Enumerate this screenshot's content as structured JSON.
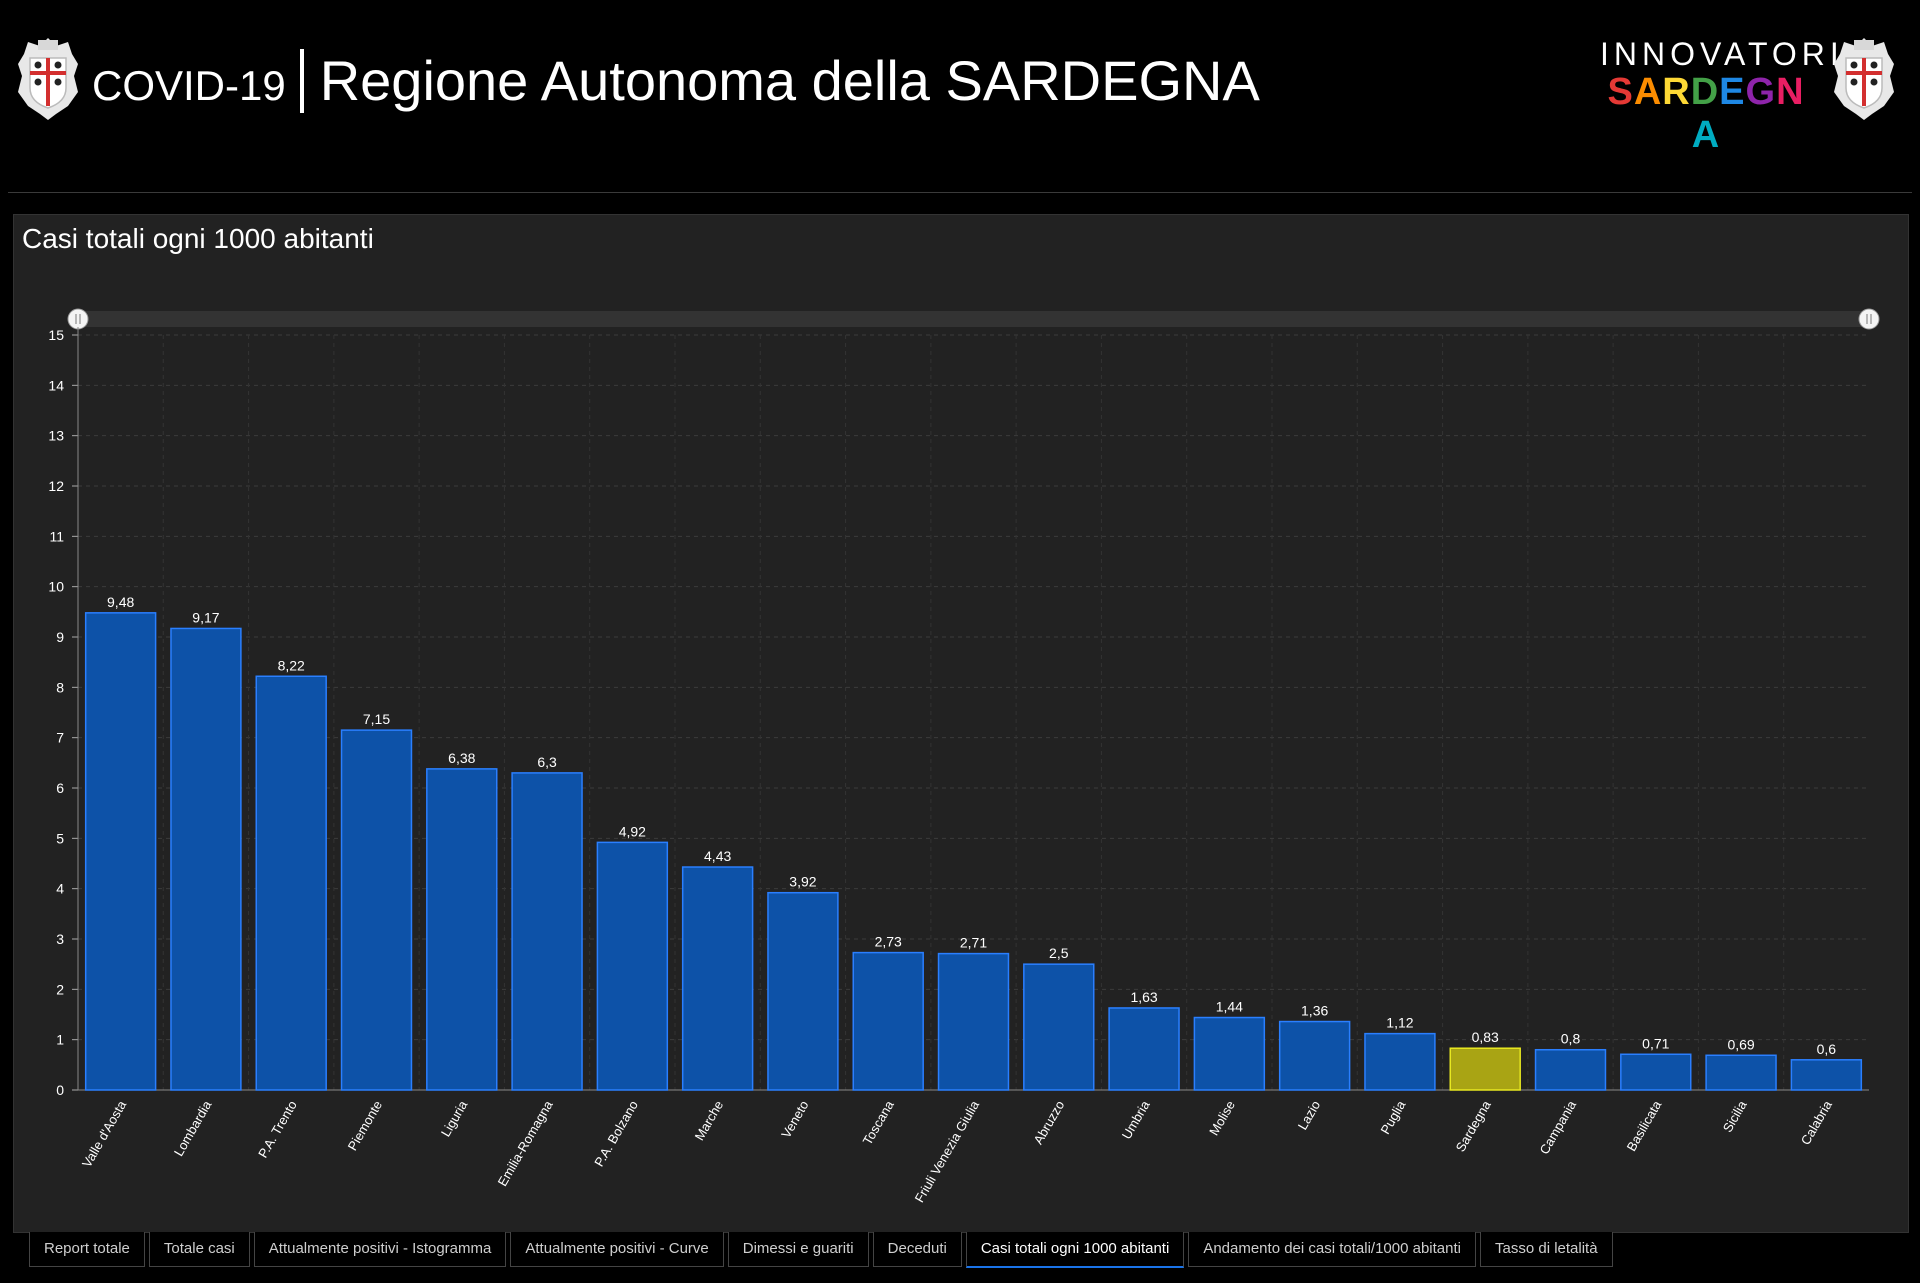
{
  "header": {
    "title_prefix": "COVID-19",
    "title_region": "Regione Autonoma della SARDEGNA",
    "brand_top": "INNOVATORI",
    "brand_bottom": "SARDEGNA",
    "brand_colors": [
      "#e53935",
      "#fb8c00",
      "#fdd835",
      "#43a047",
      "#1e88e5",
      "#8e24aa",
      "#e91e63",
      "#00acc1"
    ],
    "crest_icon": "sardinia-coat-of-arms-icon"
  },
  "panel": {
    "title": "Casi totali ogni 1000 abitanti"
  },
  "chart_data": {
    "type": "bar",
    "title": "Casi totali ogni 1000 abitanti",
    "xlabel": "",
    "ylabel": "",
    "ylim": [
      0,
      15
    ],
    "yticks": [
      0,
      1,
      2,
      3,
      4,
      5,
      6,
      7,
      8,
      9,
      10,
      11,
      12,
      13,
      14,
      15
    ],
    "grid": true,
    "legend": "none",
    "bar_color": "#0d52a8",
    "bar_border": "#2a7fff",
    "highlight_color": "#a9a414",
    "highlight_border": "#e8e820",
    "highlight_category": "Sardegna",
    "categories": [
      "Valle d'Aosta",
      "Lombardia",
      "P.A. Trento",
      "Piemonte",
      "Liguria",
      "Emilia-Romagna",
      "P.A. Bolzano",
      "Marche",
      "Veneto",
      "Toscana",
      "Friuli Venezia Giulia",
      "Abruzzo",
      "Umbria",
      "Molise",
      "Lazio",
      "Puglia",
      "Sardegna",
      "Campania",
      "Basilicata",
      "Sicilia",
      "Calabria"
    ],
    "values": [
      9.48,
      9.17,
      8.22,
      7.15,
      6.38,
      6.3,
      4.92,
      4.43,
      3.92,
      2.73,
      2.71,
      2.5,
      1.63,
      1.44,
      1.36,
      1.12,
      0.83,
      0.8,
      0.71,
      0.69,
      0.6
    ],
    "value_labels": [
      "9,48",
      "9,17",
      "8,22",
      "7,15",
      "6,38",
      "6,3",
      "4,92",
      "4,43",
      "3,92",
      "2,73",
      "2,71",
      "2,5",
      "1,63",
      "1,44",
      "1,36",
      "1,12",
      "0,83",
      "0,8",
      "0,71",
      "0,69",
      "0,6"
    ]
  },
  "tabs": [
    {
      "label": "Report totale",
      "active": false
    },
    {
      "label": "Totale casi",
      "active": false
    },
    {
      "label": "Attualmente positivi - Istogramma",
      "active": false
    },
    {
      "label": "Attualmente positivi - Curve",
      "active": false
    },
    {
      "label": "Dimessi e guariti",
      "active": false
    },
    {
      "label": "Deceduti",
      "active": false
    },
    {
      "label": "Casi totali ogni 1000 abitanti",
      "active": true
    },
    {
      "label": "Andamento dei casi totali/1000 abitanti",
      "active": false
    },
    {
      "label": "Tasso di letalità",
      "active": false
    }
  ]
}
